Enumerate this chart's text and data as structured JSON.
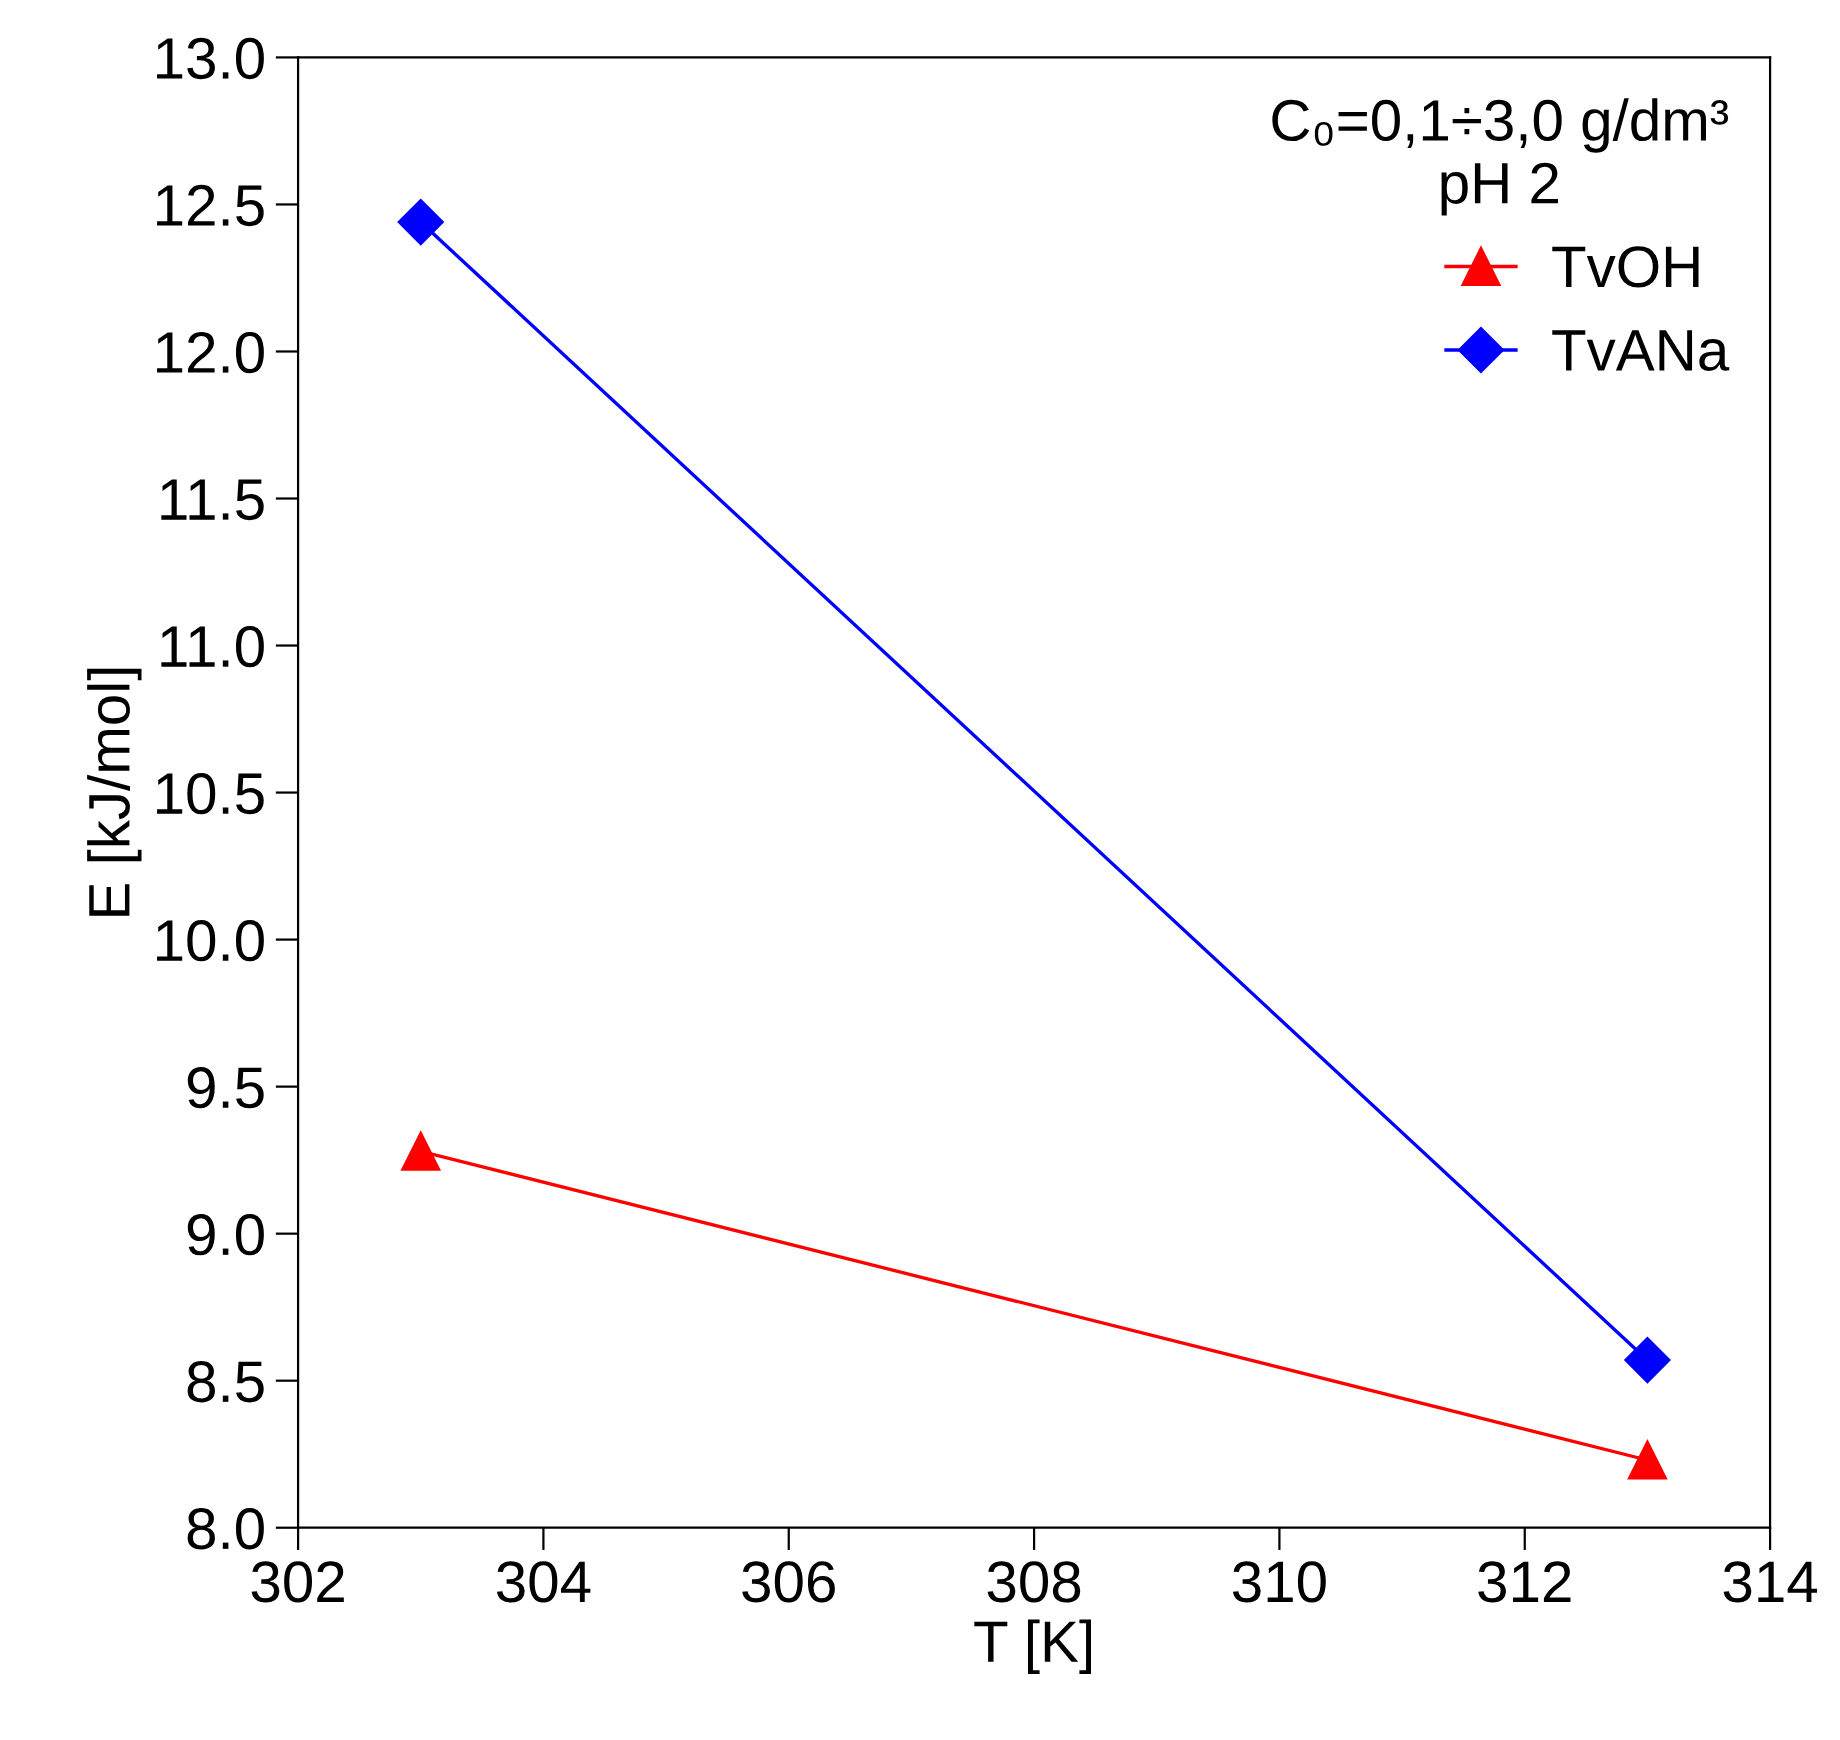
{
  "chart_data": {
    "type": "line",
    "xlabel": "T [K]",
    "ylabel": "E [kJ/mol]",
    "legend_title": "C₀=0,1÷3,0 g/dm³\npH 2",
    "legend": "top right",
    "grid": false,
    "x": [
      303,
      313
    ],
    "series": [
      {
        "name": "TvOH",
        "color": "#ff0000",
        "marker": "triangle",
        "values": [
          9.28,
          8.23
        ]
      },
      {
        "name": "TvANa",
        "color": "#0000ff",
        "marker": "diamond",
        "values": [
          12.44,
          8.57
        ]
      }
    ],
    "xlim": [
      302,
      314
    ],
    "xticks": [
      302,
      304,
      306,
      308,
      310,
      312,
      314
    ],
    "ylim": [
      8.0,
      13.0
    ],
    "yticks": [
      {
        "value": 8,
        "label": "8.0"
      },
      8.5,
      {
        "value": 9,
        "label": "9.0"
      },
      9.5,
      {
        "value": 10,
        "label": "10.0"
      },
      10.5,
      {
        "value": 11,
        "label": "11.0"
      },
      11.5,
      {
        "value": 12,
        "label": "12.0"
      },
      12.5,
      {
        "value": 13,
        "label": "13.0"
      }
    ]
  }
}
